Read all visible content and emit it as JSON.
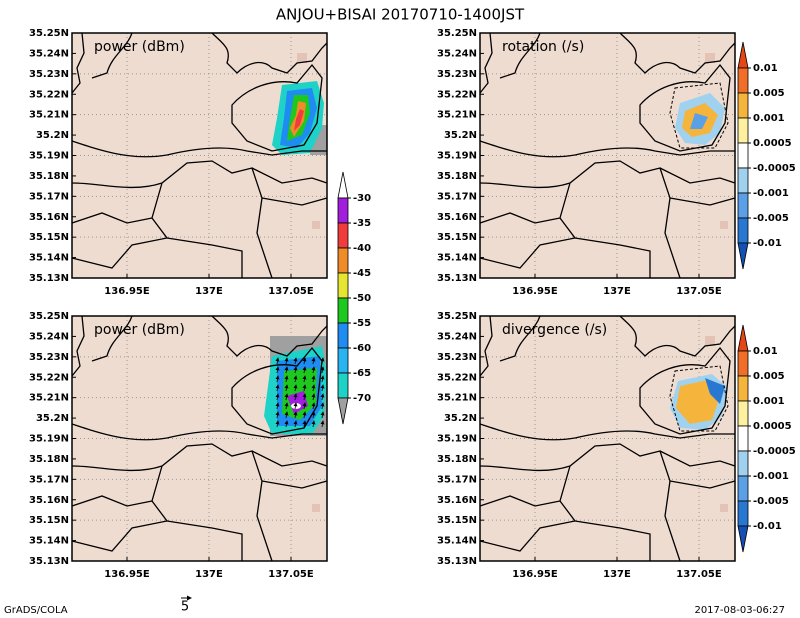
{
  "title": "ANJOU+BISAI  20170710-1400JST",
  "axes": {
    "lat_labels": [
      "35.25N",
      "35.24N",
      "35.23N",
      "35.22N",
      "35.21N",
      "35.2N",
      "35.19N",
      "35.18N",
      "35.17N",
      "35.16N",
      "35.15N",
      "35.14N",
      "35.13N"
    ],
    "lon_labels": [
      "136.95E",
      "137E",
      "137.05E"
    ]
  },
  "panels": [
    {
      "label": "power (dBm)"
    },
    {
      "label": "rotation (/s)"
    },
    {
      "label": "power (dBm)"
    },
    {
      "label": "divergence (/s)"
    }
  ],
  "colorbars": [
    {
      "labels": [
        "-30",
        "-35",
        "-40",
        "-45",
        "-50",
        "-55",
        "-60",
        "-65",
        "-70"
      ],
      "colors": [
        "#ffffff",
        "#a01edc",
        "#f03c3c",
        "#f08c28",
        "#e6e632",
        "#1ec81e",
        "#1e8cf0",
        "#28b4f0",
        "#1ed2c8",
        "#a0a0a0"
      ]
    },
    {
      "labels": [
        "0.01",
        "0.005",
        "0.001",
        "0.0005",
        "-0.0005",
        "-0.001",
        "-0.005",
        "-0.01"
      ],
      "colors": [
        "#e64614",
        "#f06e28",
        "#f5b43c",
        "#fff0a0",
        "#ffffff",
        "#a0d2f0",
        "#5aa0e6",
        "#2878d2",
        "#1450b4"
      ]
    },
    {
      "labels": [
        "0.01",
        "0.005",
        "0.001",
        "0.0005",
        "-0.0005",
        "-0.001",
        "-0.005",
        "-0.01"
      ],
      "colors": [
        "#e64614",
        "#f06e28",
        "#f5b43c",
        "#fff0a0",
        "#ffffff",
        "#a0d2f0",
        "#5aa0e6",
        "#2878d2",
        "#1450b4"
      ]
    }
  ],
  "vector_scale_label": "5",
  "footer": {
    "left": "GrADS/COLA",
    "right": "2017-08-03-06:27"
  }
}
